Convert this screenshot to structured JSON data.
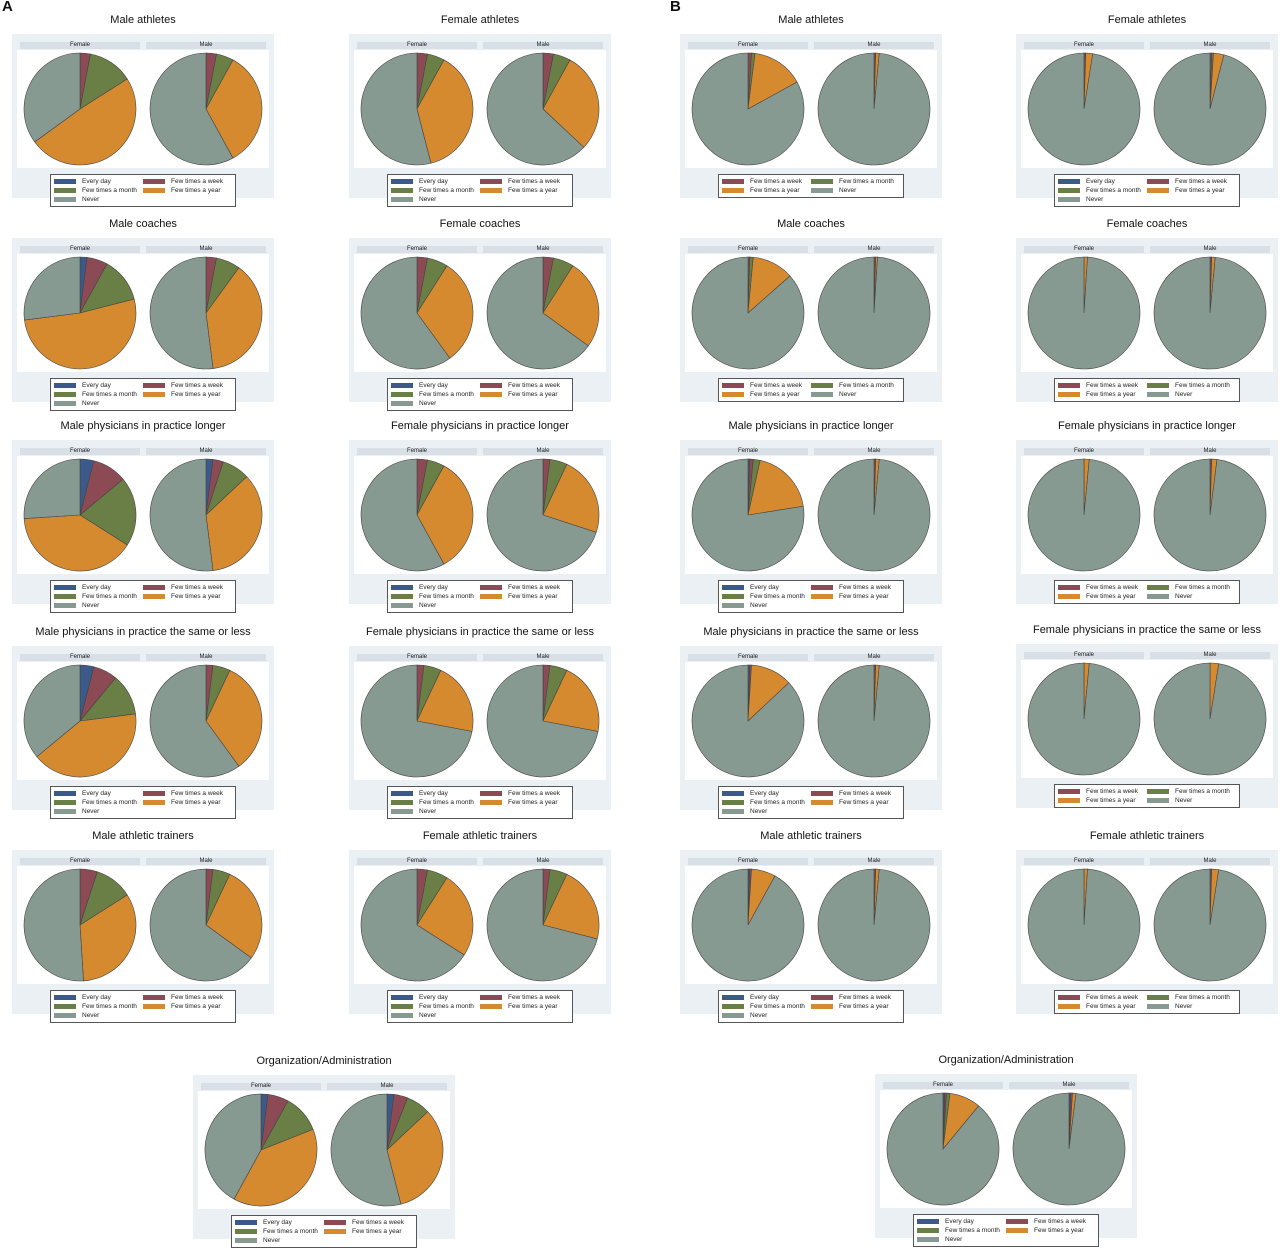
{
  "colors": {
    "Every day": "#3b5a8a",
    "Few times a week": "#8c4a55",
    "Few times a month": "#6a7f45",
    "Few times a year": "#d68a30",
    "Never": "#879a91"
  },
  "panels": [
    "A",
    "B"
  ],
  "chart_data": [
    {
      "panel": "A",
      "title": "Male athletes",
      "type": "pie",
      "facets": [
        {
          "label": "Female",
          "values": [
            0,
            3,
            13,
            49,
            35
          ]
        },
        {
          "label": "Male",
          "values": [
            0,
            3,
            5,
            34,
            58
          ]
        }
      ],
      "legend": [
        "Every day",
        "Few times a week",
        "Few times a month",
        "Few times a year",
        "Never"
      ]
    },
    {
      "panel": "A",
      "title": "Female athletes",
      "type": "pie",
      "facets": [
        {
          "label": "Female",
          "values": [
            0,
            3,
            5,
            38,
            54
          ]
        },
        {
          "label": "Male",
          "values": [
            0,
            3,
            5,
            29,
            63
          ]
        }
      ],
      "legend": [
        "Every day",
        "Few times a week",
        "Few times a month",
        "Few times a year",
        "Never"
      ]
    },
    {
      "panel": "A",
      "title": "Male coaches",
      "type": "pie",
      "facets": [
        {
          "label": "Female",
          "values": [
            2,
            6,
            13,
            52,
            27
          ]
        },
        {
          "label": "Male",
          "values": [
            0,
            3,
            7,
            38,
            52
          ]
        }
      ],
      "legend": [
        "Every day",
        "Few times a week",
        "Few times a month",
        "Few times a year",
        "Never"
      ]
    },
    {
      "panel": "A",
      "title": "Female coaches",
      "type": "pie",
      "facets": [
        {
          "label": "Female",
          "values": [
            0,
            3,
            6,
            31,
            60
          ]
        },
        {
          "label": "Male",
          "values": [
            0,
            3,
            6,
            26,
            65
          ]
        }
      ],
      "legend": [
        "Every day",
        "Few times a week",
        "Few times a month",
        "Few times a year",
        "Never"
      ]
    },
    {
      "panel": "A",
      "title": "Male physicians in practice longer",
      "type": "pie",
      "facets": [
        {
          "label": "Female",
          "values": [
            4,
            10,
            20,
            40,
            26
          ]
        },
        {
          "label": "Male",
          "values": [
            2,
            3,
            8,
            35,
            52
          ]
        }
      ],
      "legend": [
        "Every day",
        "Few times a week",
        "Few times a month",
        "Few times a year",
        "Never"
      ]
    },
    {
      "panel": "A",
      "title": "Female physicians in practice longer",
      "type": "pie",
      "facets": [
        {
          "label": "Female",
          "values": [
            0,
            3,
            5,
            34,
            58
          ]
        },
        {
          "label": "Male",
          "values": [
            0,
            2,
            5,
            23,
            70
          ]
        }
      ],
      "legend": [
        "Every day",
        "Few times a week",
        "Few times a month",
        "Few times a year",
        "Never"
      ]
    },
    {
      "panel": "A",
      "title": "Male physicians in practice the same or less",
      "type": "pie",
      "facets": [
        {
          "label": "Female",
          "values": [
            4,
            7,
            12,
            41,
            36
          ]
        },
        {
          "label": "Male",
          "values": [
            0,
            2,
            5,
            33,
            60
          ]
        }
      ],
      "legend": [
        "Every day",
        "Few times a week",
        "Few times a month",
        "Few times a year",
        "Never"
      ]
    },
    {
      "panel": "A",
      "title": "Female physicians in practice the same or less",
      "type": "pie",
      "facets": [
        {
          "label": "Female",
          "values": [
            0,
            2,
            5,
            21,
            72
          ]
        },
        {
          "label": "Male",
          "values": [
            0,
            2,
            5,
            21,
            72
          ]
        }
      ],
      "legend": [
        "Every day",
        "Few times a week",
        "Few times a month",
        "Few times a year",
        "Never"
      ]
    },
    {
      "panel": "A",
      "title": "Male athletic trainers",
      "type": "pie",
      "facets": [
        {
          "label": "Female",
          "values": [
            0,
            5,
            11,
            33,
            51
          ]
        },
        {
          "label": "Male",
          "values": [
            0,
            2,
            5,
            28,
            65
          ]
        }
      ],
      "legend": [
        "Every day",
        "Few times a week",
        "Few times a month",
        "Few times a year",
        "Never"
      ]
    },
    {
      "panel": "A",
      "title": "Female athletic trainers",
      "type": "pie",
      "facets": [
        {
          "label": "Female",
          "values": [
            0,
            3,
            6,
            25,
            66
          ]
        },
        {
          "label": "Male",
          "values": [
            0,
            2,
            5,
            22,
            71
          ]
        }
      ],
      "legend": [
        "Every day",
        "Few times a week",
        "Few times a month",
        "Few times a year",
        "Never"
      ]
    },
    {
      "panel": "A",
      "title": "Organization/Administration",
      "type": "pie",
      "facets": [
        {
          "label": "Female",
          "values": [
            2,
            6,
            11,
            39,
            42
          ]
        },
        {
          "label": "Male",
          "values": [
            2,
            4,
            7,
            33,
            54
          ]
        }
      ],
      "legend": [
        "Every day",
        "Few times a week",
        "Few times a month",
        "Few times a year",
        "Never"
      ]
    },
    {
      "panel": "B",
      "title": "Male athletes",
      "type": "pie",
      "facets": [
        {
          "label": "Female",
          "values": [
            0,
            1,
            1,
            15,
            83
          ]
        },
        {
          "label": "Male",
          "values": [
            0,
            0.5,
            0,
            1,
            98.5
          ]
        }
      ],
      "legend": [
        "Few times a week",
        "Few times a month",
        "Few times a year",
        "Never"
      ]
    },
    {
      "panel": "B",
      "title": "Female athletes",
      "type": "pie",
      "facets": [
        {
          "label": "Female",
          "values": [
            0,
            0.5,
            0,
            2,
            97.5
          ]
        },
        {
          "label": "Male",
          "values": [
            0,
            0.5,
            0.5,
            3,
            96
          ]
        }
      ],
      "legend": [
        "Every day",
        "Few times a week",
        "Few times a month",
        "Few times a year",
        "Never"
      ]
    },
    {
      "panel": "B",
      "title": "Male coaches",
      "type": "pie",
      "facets": [
        {
          "label": "Female",
          "values": [
            0,
            0.5,
            1,
            12,
            86.5
          ]
        },
        {
          "label": "Male",
          "values": [
            0,
            0.5,
            0,
            0.5,
            99
          ]
        }
      ],
      "legend": [
        "Few times a week",
        "Few times a month",
        "Few times a year",
        "Never"
      ]
    },
    {
      "panel": "B",
      "title": "Female coaches",
      "type": "pie",
      "facets": [
        {
          "label": "Female",
          "values": [
            0,
            0,
            0,
            1,
            99
          ]
        },
        {
          "label": "Male",
          "values": [
            0,
            0.5,
            0,
            1,
            98.5
          ]
        }
      ],
      "legend": [
        "Few times a week",
        "Few times a month",
        "Few times a year",
        "Never"
      ]
    },
    {
      "panel": "B",
      "title": "Male physicians in practice longer",
      "type": "pie",
      "facets": [
        {
          "label": "Female",
          "values": [
            0.5,
            1,
            2,
            19,
            77.5
          ]
        },
        {
          "label": "Male",
          "values": [
            0,
            0.5,
            0,
            1,
            98.5
          ]
        }
      ],
      "legend": [
        "Every day",
        "Few times a week",
        "Few times a month",
        "Few times a year",
        "Never"
      ]
    },
    {
      "panel": "B",
      "title": "Female physicians in practice longer",
      "type": "pie",
      "facets": [
        {
          "label": "Female",
          "values": [
            0,
            0,
            0,
            1.5,
            98.5
          ]
        },
        {
          "label": "Male",
          "values": [
            0,
            0.5,
            0,
            1.5,
            98
          ]
        }
      ],
      "legend": [
        "Few times a week",
        "Few times a month",
        "Few times a year",
        "Never"
      ]
    },
    {
      "panel": "B",
      "title": "Male physicians in practice the same or less",
      "type": "pie",
      "facets": [
        {
          "label": "Female",
          "values": [
            0.5,
            0.5,
            0,
            12,
            87
          ]
        },
        {
          "label": "Male",
          "values": [
            0,
            0.5,
            0,
            1,
            98.5
          ]
        }
      ],
      "legend": [
        "Every day",
        "Few times a week",
        "Few times a month",
        "Few times a year",
        "Never"
      ]
    },
    {
      "panel": "B",
      "title": "Female physicians in practice the same or less",
      "type": "pie",
      "facets": [
        {
          "label": "Female",
          "values": [
            0,
            0,
            0,
            1.5,
            98.5
          ]
        },
        {
          "label": "Male",
          "values": [
            0,
            0,
            0,
            2.5,
            97.5
          ]
        }
      ],
      "legend": [
        "Few times a week",
        "Few times a month",
        "Few times a year",
        "Never"
      ]
    },
    {
      "panel": "B",
      "title": "Male athletic trainers",
      "type": "pie",
      "facets": [
        {
          "label": "Female",
          "values": [
            0.5,
            0.5,
            0,
            7,
            92
          ]
        },
        {
          "label": "Male",
          "values": [
            0,
            0.5,
            0,
            1,
            98.5
          ]
        }
      ],
      "legend": [
        "Every day",
        "Few times a week",
        "Few times a month",
        "Few times a year",
        "Never"
      ]
    },
    {
      "panel": "B",
      "title": "Female athletic trainers",
      "type": "pie",
      "facets": [
        {
          "label": "Female",
          "values": [
            0,
            0,
            0,
            1,
            99
          ]
        },
        {
          "label": "Male",
          "values": [
            0,
            0.5,
            0,
            2,
            97.5
          ]
        }
      ],
      "legend": [
        "Few times a week",
        "Few times a month",
        "Few times a year",
        "Never"
      ]
    },
    {
      "panel": "B",
      "title": "Organization/Administration",
      "type": "pie",
      "facets": [
        {
          "label": "Female",
          "values": [
            0.5,
            0.5,
            1,
            9,
            89
          ]
        },
        {
          "label": "Male",
          "values": [
            0.5,
            0.5,
            0,
            1,
            98
          ]
        }
      ],
      "legend": [
        "Every day",
        "Few times a week",
        "Few times a month",
        "Few times a year",
        "Never"
      ]
    }
  ]
}
